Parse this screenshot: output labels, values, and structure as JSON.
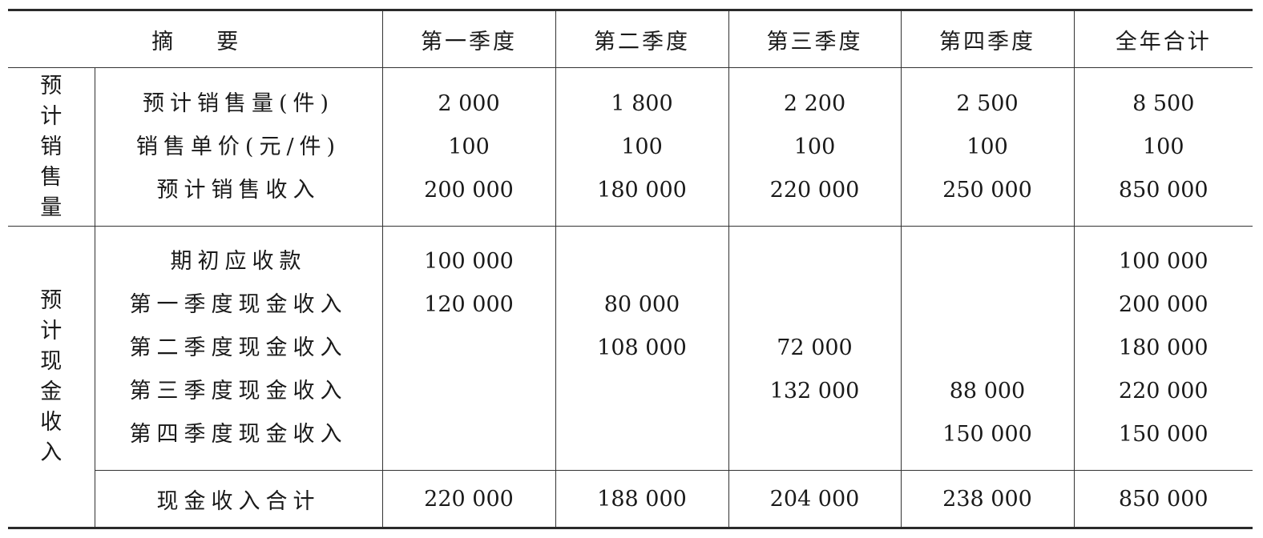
{
  "header": {
    "summary_label": "摘　　要",
    "columns": [
      "第一季度",
      "第二季度",
      "第三季度",
      "第四季度",
      "全年合计"
    ]
  },
  "sections": [
    {
      "group_label": "预计销售量",
      "rows": [
        {
          "label": "预计销售量(件)",
          "values": [
            "2 000",
            "1 800",
            "2 200",
            "2 500",
            "8 500"
          ]
        },
        {
          "label": "销售单价(元/件)",
          "values": [
            "100",
            "100",
            "100",
            "100",
            "100"
          ]
        },
        {
          "label": "预计销售收入",
          "values": [
            "200 000",
            "180 000",
            "220 000",
            "250 000",
            "850 000"
          ]
        }
      ]
    },
    {
      "group_label": "预计现金收入",
      "rows": [
        {
          "label": "期初应收款",
          "values": [
            "100 000",
            "",
            "",
            "",
            "100 000"
          ]
        },
        {
          "label": "第一季度现金收入",
          "values": [
            "120 000",
            "80 000",
            "",
            "",
            "200 000"
          ]
        },
        {
          "label": "第二季度现金收入",
          "values": [
            "",
            "108 000",
            "72 000",
            "",
            "180 000"
          ]
        },
        {
          "label": "第三季度现金收入",
          "values": [
            "",
            "",
            "132 000",
            "88 000",
            "220 000"
          ]
        },
        {
          "label": "第四季度现金收入",
          "values": [
            "",
            "",
            "",
            "150 000",
            "150 000"
          ]
        }
      ],
      "total": {
        "label": "现金收入合计",
        "values": [
          "220 000",
          "188 000",
          "204 000",
          "238 000",
          "850 000"
        ]
      }
    }
  ]
}
